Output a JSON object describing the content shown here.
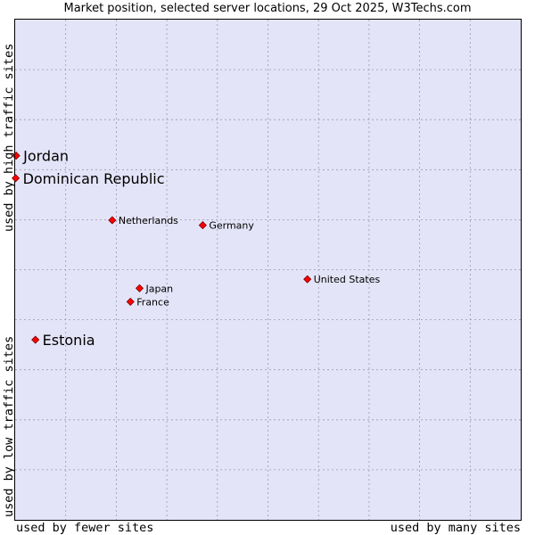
{
  "chart_data": {
    "type": "scatter",
    "title": "Market position, selected server locations, 29 Oct 2025, W3Techs.com",
    "xlabel_left": "used by fewer sites",
    "xlabel_right": "used by many sites",
    "ylabel_top": "used by high traffic sites",
    "ylabel_bottom": "used by low traffic sites",
    "xlim": [
      0,
      100
    ],
    "ylim": [
      0,
      100
    ],
    "grid": true,
    "gridlines": 10,
    "point_color": "#ff0000",
    "points": [
      {
        "label": "Jordan",
        "x": 0.2,
        "y": 72.8,
        "emphasis": true
      },
      {
        "label": "Dominican Republic",
        "x": 0.1,
        "y": 68.3,
        "emphasis": true
      },
      {
        "label": "Netherlands",
        "x": 19.2,
        "y": 59.9,
        "emphasis": false
      },
      {
        "label": "Germany",
        "x": 37.1,
        "y": 58.9,
        "emphasis": false
      },
      {
        "label": "United States",
        "x": 57.8,
        "y": 48.1,
        "emphasis": false
      },
      {
        "label": "Japan",
        "x": 24.6,
        "y": 46.3,
        "emphasis": false
      },
      {
        "label": "France",
        "x": 22.8,
        "y": 43.6,
        "emphasis": false
      },
      {
        "label": "Estonia",
        "x": 4.0,
        "y": 36.0,
        "emphasis": true
      }
    ]
  }
}
